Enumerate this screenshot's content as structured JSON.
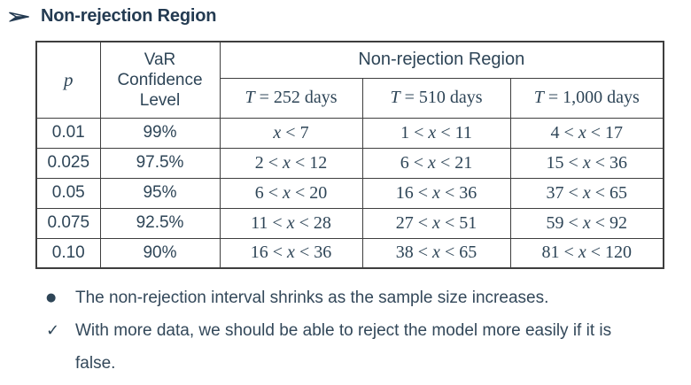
{
  "colors": {
    "heading_text": "#243b52",
    "body_text": "#2e4557",
    "table_border": "#3e3e3e",
    "background": "#ffffff"
  },
  "heading": {
    "bullet_icon": "arrowhead-right",
    "title": "Non-rejection Region"
  },
  "table": {
    "p_header": "p",
    "var_header": "VaR Confidence Level",
    "region_header": "Non-rejection Region",
    "t_headers": [
      "T = 252 days",
      "T = 510 days",
      "T = 1,000 days"
    ],
    "rows": [
      {
        "p": "0.01",
        "confidence": "99%",
        "t252": "x < 7",
        "t510": "1 < x < 11",
        "t1000": "4 < x < 17"
      },
      {
        "p": "0.025",
        "confidence": "97.5%",
        "t252": "2 < x < 12",
        "t510": "6 < x < 21",
        "t1000": "15 < x < 36"
      },
      {
        "p": "0.05",
        "confidence": "95%",
        "t252": "6 < x < 20",
        "t510": "16 < x < 36",
        "t1000": "37 < x < 65"
      },
      {
        "p": "0.075",
        "confidence": "92.5%",
        "t252": "11 < x < 28",
        "t510": "27 < x < 51",
        "t1000": "59 < x < 92"
      },
      {
        "p": "0.10",
        "confidence": "90%",
        "t252": "16 < x < 36",
        "t510": "38 < x < 65",
        "t1000": "81 < x < 120"
      }
    ]
  },
  "notes": [
    {
      "marker": "●",
      "text": "The non-rejection interval shrinks as the sample size increases."
    },
    {
      "marker": "✓",
      "text": "With more data, we should be able to reject the model more easily if it is false."
    }
  ]
}
